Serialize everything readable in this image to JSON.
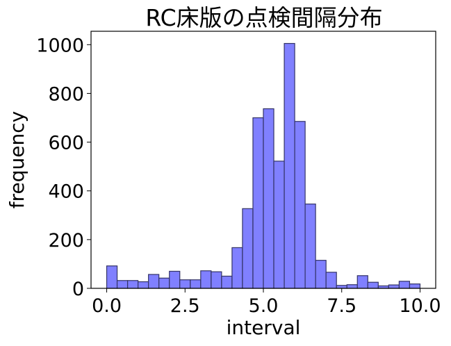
{
  "chart_data": {
    "type": "bar",
    "title": "RC床版の点検間隔分布",
    "xlabel": "interval",
    "ylabel": "frequency",
    "xlim": [
      -0.5,
      10.5
    ],
    "ylim": [
      0,
      1055
    ],
    "bin_width": 0.333,
    "x_ticks": [
      0.0,
      2.5,
      5.0,
      7.5,
      10.0
    ],
    "x_tick_labels": [
      "0.0",
      "2.5",
      "5.0",
      "7.5",
      "10.0"
    ],
    "y_ticks": [
      0,
      200,
      400,
      600,
      800,
      1000
    ],
    "y_tick_labels": [
      "0",
      "200",
      "400",
      "600",
      "800",
      "1000"
    ],
    "bin_starts": [
      0.0,
      0.333,
      0.667,
      1.0,
      1.333,
      1.667,
      2.0,
      2.333,
      2.667,
      3.0,
      3.333,
      3.667,
      4.0,
      4.333,
      4.667,
      5.0,
      5.333,
      5.667,
      6.0,
      6.333,
      6.667,
      7.0,
      7.333,
      7.667,
      8.0,
      8.333,
      8.667,
      9.0,
      9.333,
      9.667
    ],
    "values": [
      92,
      32,
      32,
      27,
      57,
      42,
      70,
      35,
      35,
      72,
      68,
      50,
      167,
      327,
      700,
      737,
      522,
      1005,
      685,
      346,
      115,
      66,
      12,
      15,
      52,
      25,
      10,
      14,
      29,
      18
    ],
    "grid": false,
    "bar_color": "#8080ff",
    "edge_color": "#333366"
  }
}
